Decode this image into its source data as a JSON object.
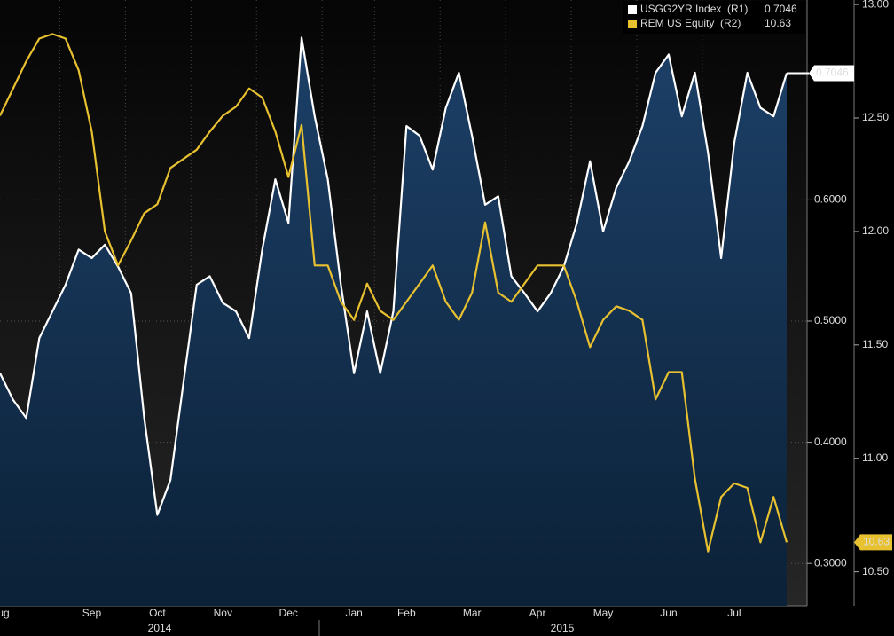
{
  "chart_data": {
    "type": "line",
    "categories": [
      "Aug",
      null,
      null,
      null,
      null,
      null,
      null,
      "Sep",
      null,
      null,
      null,
      null,
      "Oct",
      null,
      null,
      null,
      null,
      "Nov",
      null,
      null,
      null,
      null,
      "Dec",
      null,
      null,
      null,
      null,
      "Jan",
      null,
      null,
      null,
      "Feb",
      null,
      null,
      null,
      null,
      "Mar",
      null,
      null,
      null,
      null,
      "Apr",
      null,
      null,
      null,
      null,
      "May",
      null,
      null,
      null,
      null,
      "Jun",
      null,
      null,
      null,
      null,
      "Jul",
      null,
      null,
      null,
      null
    ],
    "year_labels": [
      "2014",
      "2015"
    ],
    "series": [
      {
        "name": "USGG2YR Index  (R1)",
        "color": "#ffffff",
        "area_color": "#17375a",
        "axis": "y",
        "values": [
          0.457,
          0.435,
          0.42,
          0.486,
          0.508,
          0.53,
          0.559,
          0.552,
          0.563,
          0.545,
          0.523,
          0.42,
          0.34,
          0.369,
          0.45,
          0.53,
          0.537,
          0.515,
          0.508,
          0.486,
          0.559,
          0.617,
          0.581,
          0.734,
          0.669,
          0.617,
          0.53,
          0.457,
          0.508,
          0.457,
          0.508,
          0.661,
          0.653,
          0.625,
          0.676,
          0.705,
          0.653,
          0.596,
          0.603,
          0.537,
          0.523,
          0.508,
          0.523,
          0.545,
          0.581,
          0.632,
          0.574,
          0.61,
          0.632,
          0.661,
          0.705,
          0.72,
          0.669,
          0.705,
          0.639,
          0.552,
          0.647,
          0.705,
          0.676,
          0.669,
          0.7046
        ]
      },
      {
        "name": "REM US Equity  (R2)",
        "color": "#e8c130",
        "axis": "y2",
        "values": [
          12.51,
          12.63,
          12.75,
          12.85,
          12.87,
          12.85,
          12.71,
          12.44,
          12.0,
          11.85,
          11.96,
          12.08,
          12.12,
          12.28,
          12.32,
          12.36,
          12.44,
          12.51,
          12.55,
          12.63,
          12.59,
          12.44,
          12.24,
          12.47,
          11.85,
          11.85,
          11.69,
          11.61,
          11.77,
          11.65,
          11.61,
          11.69,
          11.77,
          11.85,
          11.69,
          11.61,
          11.73,
          12.04,
          11.73,
          11.69,
          11.77,
          11.85,
          11.85,
          11.85,
          11.69,
          11.49,
          11.61,
          11.67,
          11.65,
          11.61,
          11.26,
          11.38,
          11.38,
          10.91,
          10.59,
          10.83,
          10.89,
          10.87,
          10.63,
          10.83,
          10.63
        ]
      }
    ],
    "ylim": [
      0.265,
      0.765
    ],
    "yticks": [
      {
        "value": 0.3,
        "label": "0.3000"
      },
      {
        "value": 0.4,
        "label": "0.4000"
      },
      {
        "value": 0.5,
        "label": "0.5000"
      },
      {
        "value": 0.6,
        "label": "0.6000"
      }
    ],
    "y2lim": [
      10.35,
      13.02
    ],
    "y2ticks": [
      {
        "value": 10.5,
        "label": "10.50"
      },
      {
        "value": 11.0,
        "label": "11.00"
      },
      {
        "value": 11.5,
        "label": "11.50"
      },
      {
        "value": 12.0,
        "label": "12.00"
      },
      {
        "value": 12.5,
        "label": "12.50"
      },
      {
        "value": 13.0,
        "label": "13.00"
      }
    ],
    "grid": true,
    "legend": "top-right"
  }
}
